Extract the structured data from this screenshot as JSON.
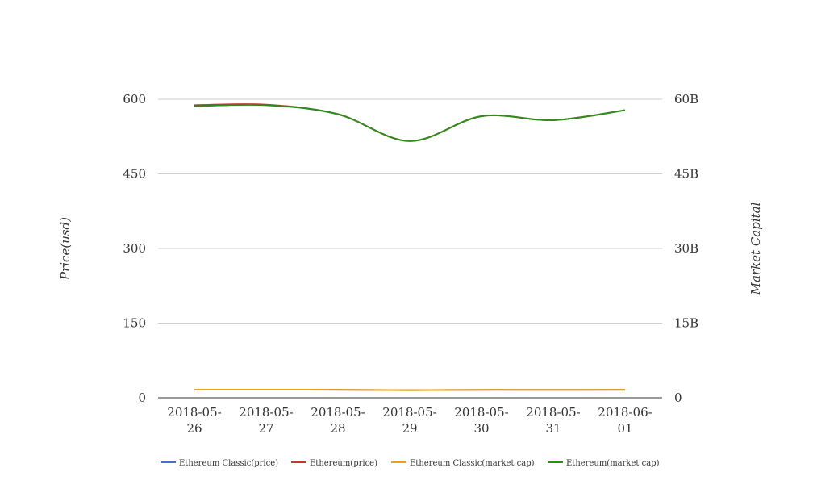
{
  "chart_data": {
    "type": "line",
    "title": "",
    "xlabel": "",
    "ylabel": "Price(usd)",
    "y2label": "Market Capital",
    "categories": [
      "2018-05-26",
      "2018-05-27",
      "2018-05-28",
      "2018-05-29",
      "2018-05-30",
      "2018-05-31",
      "2018-06-01"
    ],
    "category_lines": [
      [
        "2018-05-",
        "26"
      ],
      [
        "2018-05-",
        "27"
      ],
      [
        "2018-05-",
        "28"
      ],
      [
        "2018-05-",
        "29"
      ],
      [
        "2018-05-",
        "30"
      ],
      [
        "2018-05-",
        "31"
      ],
      [
        "2018-06-",
        "01"
      ]
    ],
    "ylim": [
      0,
      600
    ],
    "yticks": [
      "0",
      "150",
      "300",
      "450",
      "600"
    ],
    "y2lim": [
      0,
      60000000000
    ],
    "y2ticks": [
      "0",
      "15B",
      "30B",
      "45B",
      "60B"
    ],
    "grid": true,
    "legend_position": "bottom",
    "series": [
      {
        "name": "Ethereum Classic(price)",
        "axis": "left",
        "color": "#4472c4",
        "values": [
          16.2,
          16.3,
          16.1,
          15.2,
          15.9,
          15.8,
          16.0
        ]
      },
      {
        "name": "Ethereum(price)",
        "axis": "left",
        "color": "#c0392b",
        "values": [
          588,
          589,
          570,
          516,
          566,
          558,
          578
        ]
      },
      {
        "name": "Ethereum Classic(market cap)",
        "axis": "right",
        "color": "#e8a317",
        "values": [
          1620000000,
          1630000000,
          1610000000,
          1520000000,
          1590000000,
          1580000000,
          1600000000
        ]
      },
      {
        "name": "Ethereum(market cap)",
        "axis": "right",
        "color": "#2e8b1e",
        "values": [
          58600000000,
          58800000000,
          57000000000,
          51600000000,
          56600000000,
          55800000000,
          57800000000
        ]
      }
    ]
  }
}
